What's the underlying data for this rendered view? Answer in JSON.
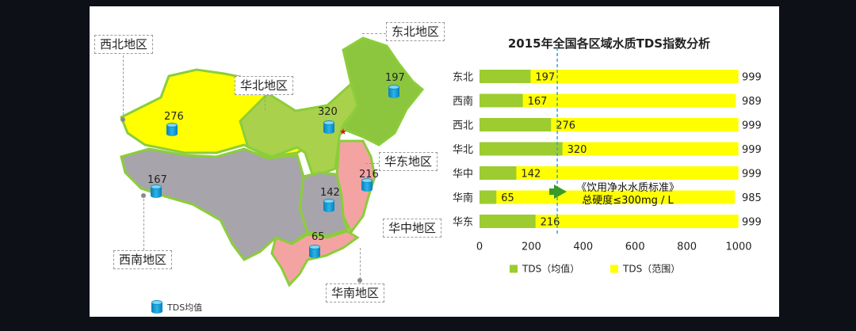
{
  "chart_data": {
    "type": "bar",
    "title": "2015年全国各区域水质TDS指数分析",
    "categories": [
      "东北",
      "西南",
      "西北",
      "华北",
      "华中",
      "华南",
      "华东"
    ],
    "series": [
      {
        "name": "TDS（均值）",
        "values": [
          197,
          167,
          276,
          320,
          142,
          65,
          216
        ],
        "color": "#9ccc2f"
      },
      {
        "name": "TDS（范围）",
        "values": [
          999,
          989,
          999,
          999,
          999,
          985,
          999
        ],
        "color": "#ffff00"
      }
    ],
    "xlim": [
      0,
      1000
    ],
    "xticks": [
      0,
      200,
      400,
      600,
      800,
      1000
    ],
    "reference_line": 300,
    "annotation": {
      "line1": "《饮用净水水质标准》",
      "line2": "总硬度≤300mg / L"
    },
    "legend_position": "bottom"
  },
  "map": {
    "regions": [
      {
        "name": "西北地区",
        "value": 276
      },
      {
        "name": "华北地区",
        "value": 320
      },
      {
        "name": "东北地区",
        "value": 197
      },
      {
        "name": "华东地区",
        "value": 216
      },
      {
        "name": "华中地区",
        "value": 142
      },
      {
        "name": "西南地区",
        "value": 167
      },
      {
        "name": "华南地区",
        "value": 65
      }
    ],
    "legend_label": "TDS均值",
    "colors": {
      "northwest": "#ffff00",
      "north": "#a9d14b",
      "northeast": "#8cc63f",
      "east": "#f4a3a3",
      "central": "#a7a5ab",
      "southwest": "#a7a5ab",
      "south": "#f4a3a3",
      "border": "#8ccd3a"
    }
  }
}
